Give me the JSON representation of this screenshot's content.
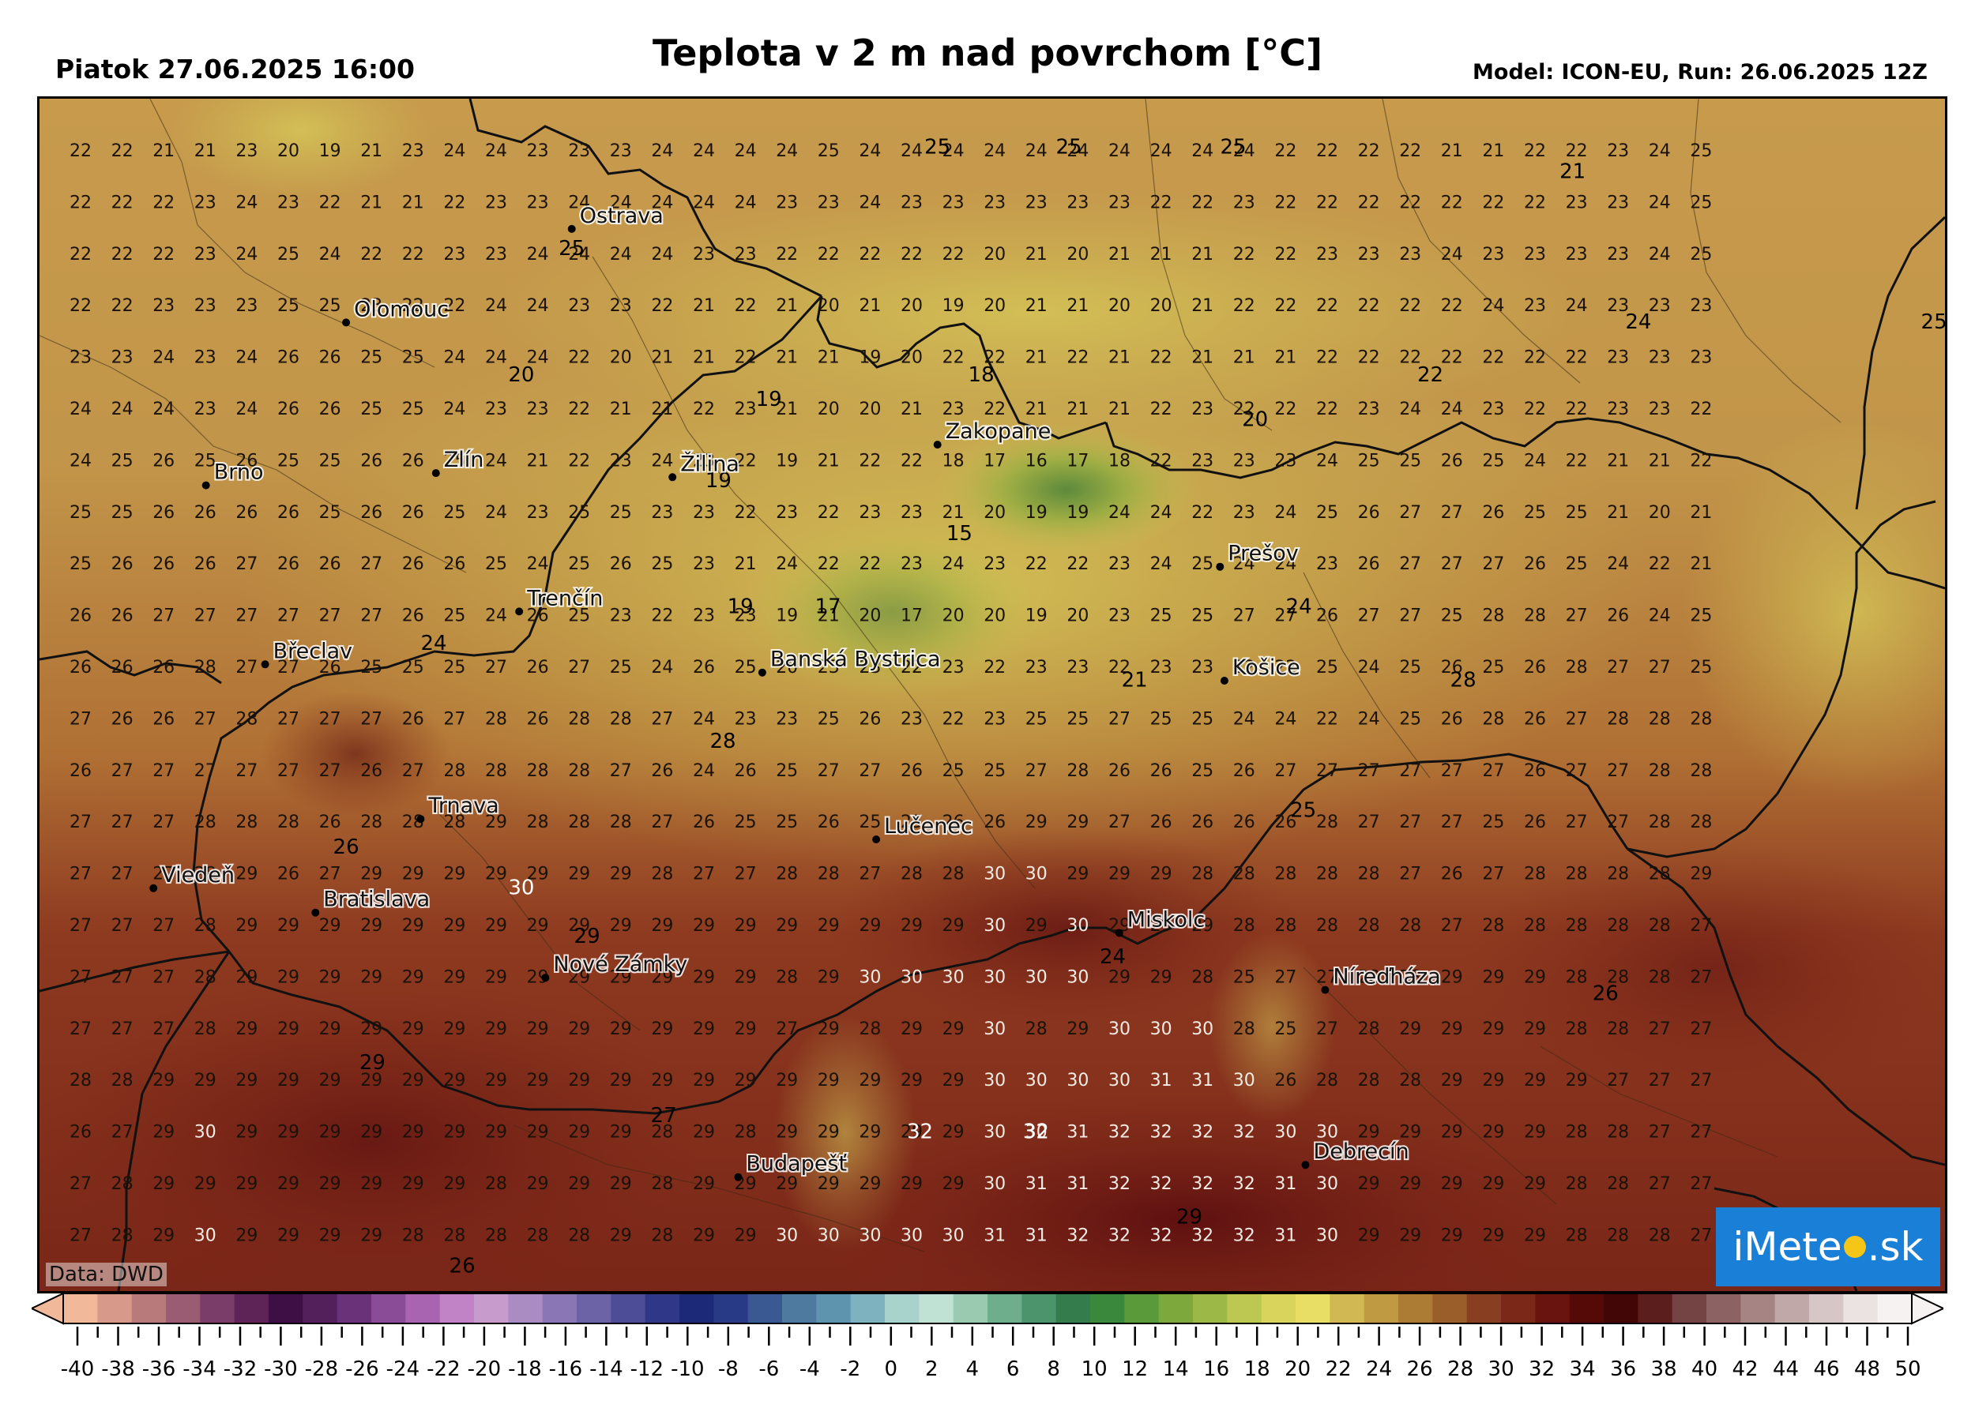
{
  "header": {
    "date": "Piatok 27.06.2025 16:00",
    "title": "Teplota v 2 m nad povrchom [°C]",
    "model": "Model: ICON-EU, Run: 26.06.2025 12Z"
  },
  "map": {
    "data_credit": "Data: DWD",
    "logo": {
      "text_before": "iMete",
      "text_after": ".sk"
    },
    "cities": [
      {
        "name": "Ostrava",
        "lon": 18.28,
        "lat": 49.83
      },
      {
        "name": "Olomouc",
        "lon": 17.25,
        "lat": 49.6
      },
      {
        "name": "Brno",
        "lon": 16.61,
        "lat": 49.2
      },
      {
        "name": "Zlín",
        "lon": 17.66,
        "lat": 49.23
      },
      {
        "name": "Žilina",
        "lon": 18.74,
        "lat": 49.22
      },
      {
        "name": "Zakopane",
        "lon": 19.95,
        "lat": 49.3
      },
      {
        "name": "Prešov",
        "lon": 21.24,
        "lat": 49.0
      },
      {
        "name": "Trenčín",
        "lon": 18.04,
        "lat": 48.89
      },
      {
        "name": "Břeclav",
        "lon": 16.88,
        "lat": 48.76
      },
      {
        "name": "Banská Bystrica",
        "lon": 19.15,
        "lat": 48.74
      },
      {
        "name": "Košice",
        "lon": 21.26,
        "lat": 48.72
      },
      {
        "name": "Trnava",
        "lon": 17.59,
        "lat": 48.38
      },
      {
        "name": "Lučenec",
        "lon": 19.67,
        "lat": 48.33
      },
      {
        "name": "Viedeň",
        "lon": 16.37,
        "lat": 48.21
      },
      {
        "name": "Bratislava",
        "lon": 17.11,
        "lat": 48.15
      },
      {
        "name": "Miskolc",
        "lon": 20.78,
        "lat": 48.1
      },
      {
        "name": "Nové Zámky",
        "lon": 18.16,
        "lat": 47.99
      },
      {
        "name": "Níreďháza",
        "lon": 21.72,
        "lat": 47.96
      },
      {
        "name": "Debrecín",
        "lon": 21.63,
        "lat": 47.53
      },
      {
        "name": "Budapešť",
        "lon": 19.04,
        "lat": 47.5
      }
    ],
    "grid": {
      "rows": [
        [
          22,
          22,
          21,
          21,
          23,
          20,
          19,
          21,
          23,
          24,
          24,
          23,
          23,
          23,
          24,
          24,
          24,
          24,
          25,
          24,
          24,
          24,
          24,
          24,
          24,
          24,
          24,
          24,
          24,
          22,
          22,
          22,
          22,
          21,
          21,
          22,
          22,
          23,
          24,
          25
        ],
        [
          22,
          22,
          22,
          23,
          24,
          23,
          22,
          21,
          21,
          22,
          23,
          23,
          24,
          24,
          24,
          24,
          24,
          23,
          23,
          24,
          23,
          23,
          23,
          23,
          23,
          23,
          22,
          22,
          23,
          22,
          22,
          22,
          22,
          22,
          22,
          22,
          23,
          23,
          24,
          25
        ],
        [
          22,
          22,
          22,
          23,
          24,
          25,
          24,
          22,
          22,
          23,
          23,
          24,
          24,
          24,
          24,
          23,
          23,
          22,
          22,
          22,
          22,
          22,
          20,
          21,
          20,
          21,
          21,
          21,
          22,
          22,
          23,
          23,
          23,
          24,
          23,
          23,
          23,
          23,
          24,
          25
        ],
        [
          22,
          22,
          23,
          23,
          23,
          25,
          25,
          23,
          22,
          22,
          24,
          24,
          23,
          23,
          22,
          21,
          22,
          21,
          20,
          21,
          20,
          19,
          20,
          21,
          21,
          20,
          20,
          21,
          22,
          22,
          22,
          22,
          22,
          22,
          24,
          23,
          24,
          23,
          23,
          23
        ],
        [
          23,
          23,
          24,
          23,
          24,
          26,
          26,
          25,
          25,
          24,
          24,
          24,
          22,
          20,
          21,
          21,
          22,
          21,
          21,
          19,
          20,
          22,
          22,
          21,
          22,
          21,
          22,
          21,
          21,
          21,
          22,
          22,
          22,
          22,
          22,
          22,
          22,
          23,
          23,
          23
        ],
        [
          24,
          24,
          24,
          23,
          24,
          26,
          26,
          25,
          25,
          24,
          23,
          23,
          22,
          21,
          21,
          22,
          23,
          21,
          20,
          20,
          21,
          23,
          22,
          21,
          21,
          21,
          22,
          23,
          22,
          22,
          22,
          23,
          24,
          24,
          23,
          22,
          22,
          23,
          23,
          22
        ],
        [
          24,
          25,
          26,
          25,
          26,
          25,
          25,
          26,
          26,
          25,
          24,
          21,
          22,
          23,
          24,
          23,
          22,
          19,
          21,
          22,
          22,
          18,
          17,
          16,
          17,
          18,
          22,
          23,
          23,
          23,
          24,
          25,
          25,
          26,
          25,
          24,
          22,
          21,
          21,
          22
        ],
        [
          25,
          25,
          26,
          26,
          26,
          26,
          25,
          26,
          26,
          25,
          24,
          23,
          25,
          25,
          23,
          23,
          22,
          23,
          22,
          23,
          23,
          21,
          20,
          19,
          19,
          24,
          24,
          22,
          23,
          24,
          25,
          26,
          27,
          27,
          26,
          25,
          25,
          21,
          20,
          21
        ],
        [
          25,
          26,
          26,
          26,
          27,
          26,
          26,
          27,
          26,
          26,
          25,
          24,
          25,
          26,
          25,
          23,
          21,
          24,
          22,
          22,
          23,
          24,
          23,
          22,
          22,
          23,
          24,
          25,
          24,
          24,
          23,
          26,
          27,
          27,
          27,
          26,
          25,
          24,
          22,
          21
        ],
        [
          26,
          26,
          27,
          27,
          27,
          27,
          27,
          27,
          26,
          25,
          24,
          26,
          25,
          23,
          22,
          23,
          23,
          19,
          21,
          20,
          17,
          20,
          20,
          19,
          20,
          23,
          25,
          25,
          27,
          27,
          26,
          27,
          27,
          25,
          28,
          28,
          27,
          26,
          24,
          25
        ],
        [
          26,
          26,
          26,
          28,
          27,
          27,
          26,
          25,
          25,
          25,
          27,
          26,
          27,
          25,
          24,
          26,
          25,
          20,
          23,
          23,
          22,
          23,
          22,
          23,
          23,
          22,
          23,
          23,
          22,
          22,
          25,
          24,
          25,
          26,
          25,
          26,
          28,
          27,
          27,
          25
        ],
        [
          27,
          26,
          26,
          27,
          28,
          27,
          27,
          27,
          26,
          27,
          28,
          26,
          28,
          28,
          27,
          24,
          23,
          23,
          25,
          26,
          23,
          22,
          23,
          25,
          25,
          27,
          25,
          25,
          24,
          24,
          22,
          24,
          25,
          26,
          28,
          26,
          27,
          28,
          28,
          28
        ],
        [
          26,
          27,
          27,
          27,
          27,
          27,
          27,
          26,
          27,
          28,
          28,
          28,
          28,
          27,
          26,
          24,
          26,
          25,
          27,
          27,
          26,
          25,
          25,
          27,
          28,
          26,
          26,
          25,
          26,
          27,
          27,
          27,
          27,
          27,
          27,
          26,
          27,
          27,
          28,
          28
        ],
        [
          27,
          27,
          27,
          28,
          28,
          28,
          26,
          28,
          28,
          28,
          29,
          28,
          28,
          28,
          27,
          26,
          25,
          25,
          26,
          25,
          25,
          26,
          26,
          29,
          29,
          27,
          26,
          26,
          26,
          26,
          28,
          27,
          27,
          27,
          25,
          26,
          27,
          27,
          28,
          28
        ],
        [
          27,
          27,
          27,
          28,
          29,
          26,
          27,
          29,
          29,
          29,
          29,
          29,
          29,
          29,
          28,
          27,
          27,
          28,
          28,
          27,
          28,
          28,
          30,
          30,
          29,
          29,
          29,
          28,
          28,
          28,
          28,
          28,
          27,
          26,
          27,
          28,
          28,
          28,
          28,
          29
        ],
        [
          27,
          27,
          27,
          28,
          29,
          29,
          29,
          29,
          29,
          29,
          29,
          29,
          29,
          29,
          29,
          29,
          29,
          29,
          29,
          29,
          29,
          29,
          30,
          29,
          30,
          29,
          29,
          29,
          28,
          28,
          28,
          28,
          28,
          27,
          28,
          28,
          28,
          28,
          28,
          27
        ],
        [
          27,
          27,
          27,
          28,
          29,
          29,
          29,
          29,
          29,
          29,
          29,
          29,
          29,
          29,
          29,
          29,
          29,
          28,
          29,
          30,
          30,
          30,
          30,
          30,
          30,
          29,
          29,
          28,
          25,
          27,
          27,
          28,
          28,
          29,
          29,
          29,
          28,
          28,
          28,
          27
        ],
        [
          27,
          27,
          27,
          28,
          29,
          29,
          29,
          29,
          29,
          29,
          29,
          29,
          29,
          29,
          29,
          29,
          29,
          27,
          29,
          28,
          29,
          29,
          30,
          28,
          29,
          30,
          30,
          30,
          28,
          25,
          27,
          28,
          29,
          29,
          29,
          29,
          28,
          28,
          27,
          27
        ],
        [
          28,
          28,
          29,
          29,
          29,
          29,
          29,
          29,
          29,
          29,
          29,
          29,
          29,
          29,
          29,
          29,
          29,
          29,
          29,
          29,
          29,
          29,
          30,
          30,
          30,
          30,
          31,
          31,
          30,
          26,
          28,
          28,
          28,
          29,
          29,
          29,
          29,
          27,
          27,
          27
        ],
        [
          26,
          27,
          29,
          30,
          29,
          29,
          29,
          29,
          29,
          29,
          29,
          29,
          29,
          29,
          28,
          29,
          28,
          29,
          29,
          29,
          29,
          29,
          30,
          30,
          31,
          32,
          32,
          32,
          32,
          30,
          30,
          29,
          29,
          29,
          29,
          29,
          28,
          28,
          27,
          27
        ],
        [
          27,
          28,
          29,
          29,
          29,
          29,
          29,
          29,
          29,
          29,
          28,
          29,
          29,
          29,
          28,
          29,
          29,
          29,
          29,
          29,
          29,
          29,
          30,
          31,
          31,
          32,
          32,
          32,
          32,
          31,
          30,
          29,
          29,
          29,
          29,
          29,
          28,
          28,
          27,
          27
        ],
        [
          27,
          28,
          29,
          30,
          29,
          29,
          29,
          29,
          28,
          28,
          28,
          28,
          28,
          29,
          28,
          29,
          29,
          30,
          30,
          30,
          30,
          30,
          31,
          31,
          32,
          32,
          32,
          32,
          32,
          31,
          30,
          29,
          29,
          29,
          29,
          29,
          28,
          28,
          28,
          27
        ]
      ],
      "highlights": [
        {
          "text": "25",
          "lon": 19.95,
          "lat": 50.03
        },
        {
          "text": "25",
          "lon": 20.55,
          "lat": 50.03
        },
        {
          "text": "25",
          "lon": 21.3,
          "lat": 50.03
        },
        {
          "text": "21",
          "lon": 22.85,
          "lat": 49.97
        },
        {
          "text": "25",
          "lon": 18.28,
          "lat": 49.78
        },
        {
          "text": "24",
          "lon": 23.15,
          "lat": 49.6
        },
        {
          "text": "25",
          "lon": 24.5,
          "lat": 49.6
        },
        {
          "text": "20",
          "lon": 18.05,
          "lat": 49.47
        },
        {
          "text": "18",
          "lon": 20.15,
          "lat": 49.47
        },
        {
          "text": "22",
          "lon": 22.2,
          "lat": 49.47
        },
        {
          "text": "19",
          "lon": 19.18,
          "lat": 49.41
        },
        {
          "text": "20",
          "lon": 21.4,
          "lat": 49.36
        },
        {
          "text": "19",
          "lon": 18.95,
          "lat": 49.21
        },
        {
          "text": "15",
          "lon": 20.05,
          "lat": 49.08
        },
        {
          "text": "24",
          "lon": 21.6,
          "lat": 48.9
        },
        {
          "text": "19",
          "lon": 19.05,
          "lat": 48.9
        },
        {
          "text": "17",
          "lon": 19.45,
          "lat": 48.9
        },
        {
          "text": "24",
          "lon": 17.65,
          "lat": 48.81
        },
        {
          "text": "28",
          "lon": 22.35,
          "lat": 48.72
        },
        {
          "text": "21",
          "lon": 20.85,
          "lat": 48.72
        },
        {
          "text": "28",
          "lon": 18.97,
          "lat": 48.57
        },
        {
          "text": "25",
          "lon": 21.62,
          "lat": 48.4
        },
        {
          "text": "26",
          "lon": 17.25,
          "lat": 48.31
        },
        {
          "text": "30",
          "lon": 18.05,
          "lat": 48.21
        },
        {
          "text": "29",
          "lon": 18.35,
          "lat": 48.09
        },
        {
          "text": "24",
          "lon": 20.75,
          "lat": 48.04
        },
        {
          "text": "26",
          "lon": 23.0,
          "lat": 47.95
        },
        {
          "text": "29",
          "lon": 17.37,
          "lat": 47.78
        },
        {
          "text": "27",
          "lon": 18.7,
          "lat": 47.65
        },
        {
          "text": "32",
          "lon": 19.87,
          "lat": 47.61
        },
        {
          "text": "32",
          "lon": 20.4,
          "lat": 47.61
        },
        {
          "text": "29",
          "lon": 21.1,
          "lat": 47.4
        },
        {
          "text": "26",
          "lon": 17.78,
          "lat": 47.28
        }
      ]
    }
  },
  "colorbar": {
    "tick_labels": [
      "-40",
      "-38",
      "-36",
      "-34",
      "-32",
      "-30",
      "-28",
      "-26",
      "-24",
      "-22",
      "-20",
      "-18",
      "-16",
      "-14",
      "-12",
      "-10",
      "-8",
      "-6",
      "-4",
      "-2",
      "0",
      "2",
      "4",
      "6",
      "8",
      "10",
      "12",
      "14",
      "16",
      "18",
      "20",
      "22",
      "24",
      "26",
      "28",
      "30",
      "32",
      "34",
      "36",
      "38",
      "40",
      "42",
      "44",
      "46",
      "48",
      "50"
    ],
    "colors": [
      "#f2b89a",
      "#d79a8a",
      "#b97a7c",
      "#9a5c72",
      "#7a3c68",
      "#5e2458",
      "#3e0f44",
      "#54205c",
      "#6a3278",
      "#8a4c96",
      "#a864b0",
      "#c283c6",
      "#c79ccc",
      "#aa8cc2",
      "#8a76b4",
      "#6c62a6",
      "#4d4c96",
      "#2f3888",
      "#1c2878",
      "#283a86",
      "#3a5892",
      "#4f7aa0",
      "#5f94ae",
      "#7eb2be",
      "#a8d2cc",
      "#bfe2d4",
      "#9acbb0",
      "#6fae8c",
      "#4c956c",
      "#347c4c",
      "#3a883c",
      "#5a9a3a",
      "#7ca83c",
      "#9cb846",
      "#bcc852",
      "#d8d45c",
      "#e8de66",
      "#d2b852",
      "#c09a42",
      "#ac7c34",
      "#9a5e2a",
      "#883e20",
      "#7c2818",
      "#6a1410",
      "#560a08",
      "#420606",
      "#5c1e1c",
      "#744444",
      "#8c6262",
      "#a68484",
      "#c0a8a8",
      "#d6c6c6",
      "#ebe2e2",
      "#f6f2f2"
    ]
  }
}
